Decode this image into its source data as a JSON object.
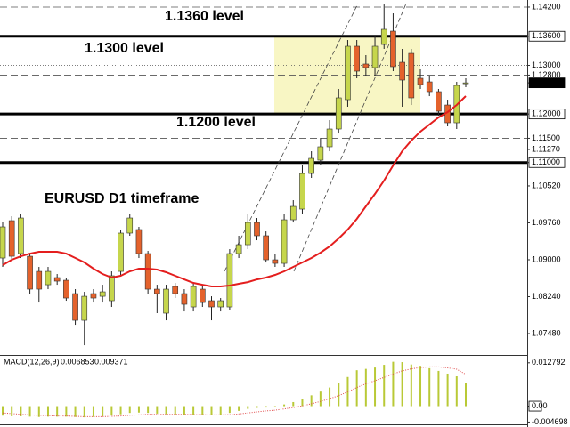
{
  "chart_data": [
    {
      "type": "candlestick",
      "annotations": [
        "1.1360 level",
        "1.1300 level",
        "1.1200 level",
        "EURUSD D1 timeframe"
      ],
      "open": [
        1.09036,
        1.09805,
        1.09127,
        1.09072,
        1.08761,
        1.08486,
        1.08633,
        1.08578,
        1.08303,
        1.07754,
        1.08303,
        1.08248,
        1.08157,
        1.08761,
        1.09549,
        1.09622,
        1.09127,
        1.08395,
        1.07901,
        1.0845,
        1.08303,
        1.08029,
        1.08395,
        1.08157,
        1.08029,
        1.08029,
        1.09127,
        1.0931,
        1.09768,
        1.09494,
        1.08999,
        1.08926,
        1.09823,
        1.10043,
        1.10775,
        1.1105,
        1.11325,
        1.11691,
        1.12295,
        1.13394,
        1.13028,
        1.12954,
        1.1343,
        1.13705,
        1.13064,
        1.13247,
        1.12735,
        1.12661,
        1.1246,
        1.12185,
        1.11819,
        1.12625
      ],
      "high": [
        1.09768,
        1.09896,
        1.09951,
        1.09127,
        1.08853,
        1.08853,
        1.08706,
        1.08633,
        1.08395,
        1.0834,
        1.08395,
        1.08486,
        1.08761,
        1.09622,
        1.09951,
        1.09677,
        1.09182,
        1.08486,
        1.08486,
        1.08523,
        1.08395,
        1.08523,
        1.08486,
        1.08248,
        1.08212,
        1.09219,
        1.09494,
        1.09951,
        1.0986,
        1.09585,
        1.09127,
        1.09951,
        1.10226,
        1.10958,
        1.11233,
        1.11508,
        1.11874,
        1.12515,
        1.13522,
        1.13522,
        1.13211,
        1.13614,
        1.14254,
        1.14071,
        1.13339,
        1.13339,
        1.12918,
        1.1279,
        1.12515,
        1.12295,
        1.12661,
        1.12735
      ],
      "low": [
        1.08853,
        1.08999,
        1.09036,
        1.08303,
        1.0812,
        1.08395,
        1.08486,
        1.08157,
        1.07662,
        1.07241,
        1.0812,
        1.0812,
        1.08029,
        1.0867,
        1.09494,
        1.09036,
        1.08303,
        1.07901,
        1.07754,
        1.08212,
        1.07937,
        1.07937,
        1.08029,
        1.07754,
        1.07937,
        1.07974,
        1.09036,
        1.09219,
        1.09402,
        1.08944,
        1.08853,
        1.08853,
        1.09768,
        1.09951,
        1.10684,
        1.10958,
        1.11233,
        1.11599,
        1.12149,
        1.12735,
        1.1279,
        1.1279,
        1.13339,
        1.12881,
        1.12149,
        1.12185,
        1.12515,
        1.12368,
        1.11966,
        1.11746,
        1.11691,
        1.12552
      ],
      "close": [
        1.09677,
        1.09072,
        1.0986,
        1.08395,
        1.08395,
        1.08761,
        1.0856,
        1.08212,
        1.07754,
        1.08248,
        1.08212,
        1.0834,
        1.0867,
        1.09549,
        1.0986,
        1.09127,
        1.08395,
        1.08303,
        1.08395,
        1.08303,
        1.08084,
        1.0845,
        1.0812,
        1.08029,
        1.08157,
        1.09127,
        1.0931,
        1.09768,
        1.09494,
        1.08999,
        1.08926,
        1.09823,
        1.10098,
        1.10775,
        1.11087,
        1.11325,
        1.11691,
        1.12332,
        1.13394,
        1.12881,
        1.12954,
        1.13394,
        1.13742,
        1.12973,
        1.12698,
        1.12332,
        1.12606,
        1.1246,
        1.12057,
        1.11819,
        1.12588,
        1.12641
      ],
      "colors": {
        "up": "#c6d64c",
        "down": "#e4622c"
      },
      "ma": {
        "color": "#e41e1e",
        "values": [
          1.08889,
          1.08999,
          1.09072,
          1.09127,
          1.09164,
          1.09164,
          1.09164,
          1.09127,
          1.09036,
          1.08944,
          1.08816,
          1.08706,
          1.08633,
          1.0867,
          1.08761,
          1.08816,
          1.08816,
          1.08798,
          1.08743,
          1.0867,
          1.08596,
          1.08523,
          1.08486,
          1.0845,
          1.0845,
          1.08468,
          1.08505,
          1.08541,
          1.08596,
          1.08633,
          1.08688,
          1.08761,
          1.08853,
          1.08944,
          1.09036,
          1.09146,
          1.09274,
          1.09439,
          1.09622,
          1.09841,
          1.10098,
          1.10354,
          1.10629,
          1.1094,
          1.11233,
          1.11453,
          1.11636,
          1.11782,
          1.11929,
          1.12039,
          1.12185,
          1.12368
        ]
      },
      "levels": [
        {
          "value": 1.142,
          "style": "dashed"
        },
        {
          "value": 1.136,
          "style": "solid"
        },
        {
          "value": 1.13,
          "style": "dotted"
        },
        {
          "value": 1.128,
          "style": "dashed"
        },
        {
          "value": 1.12,
          "style": "solid"
        },
        {
          "value": 1.115,
          "style": "dashed"
        },
        {
          "value": 1.11,
          "style": "solid"
        }
      ],
      "zone": {
        "ylim": [
          1.12,
          1.136
        ],
        "color": "#f8f6c4"
      },
      "ylim": [
        1.07059,
        1.14346
      ],
      "yticks": [
        {
          "value": 1.142,
          "label": "1.14200"
        },
        {
          "value": 1.136,
          "label": "1.13600"
        },
        {
          "value": 1.13,
          "label": "1.13000"
        },
        {
          "value": 1.128,
          "label": "1.12800"
        },
        1.12641,
        {
          "value": 1.12,
          "label": "1.12000"
        },
        {
          "value": 1.115,
          "label": "1.11500"
        },
        {
          "value": 1.1127,
          "label": "1.11270"
        },
        {
          "value": 1.11,
          "label": "1.11000"
        },
        {
          "value": 1.1052,
          "label": "1.10520"
        },
        {
          "value": 1.0976,
          "label": "1.09760"
        },
        {
          "value": 1.09,
          "label": "1.09000"
        },
        {
          "value": 1.0824,
          "label": "1.08240"
        },
        {
          "value": 1.0748,
          "label": "1.07480"
        }
      ]
    },
    {
      "type": "bar",
      "title": "MACD(12,26,9)",
      "color": "#b9c936",
      "values": [
        -0.0028,
        -0.003,
        -0.003,
        -0.0031,
        -0.0032,
        -0.0031,
        -0.0031,
        -0.0031,
        -0.0032,
        -0.0033,
        -0.0032,
        -0.003,
        -0.0028,
        -0.0024,
        -0.002,
        -0.0019,
        -0.002,
        -0.0022,
        -0.0024,
        -0.0025,
        -0.0026,
        -0.0027,
        -0.0027,
        -0.0027,
        -0.0026,
        -0.002,
        -0.0014,
        -0.0008,
        -0.0005,
        -0.0004,
        -0.0002,
        0.0005,
        0.0012,
        0.0021,
        0.0032,
        0.0043,
        0.0055,
        0.0068,
        0.0086,
        0.0106,
        0.011,
        0.0114,
        0.0122,
        0.0131,
        0.013,
        0.0123,
        0.0119,
        0.0112,
        0.0104,
        0.0096,
        0.0088,
        0.006853
      ],
      "signal": {
        "color": "#e04a4a",
        "values": [
          -0.002,
          -0.0022,
          -0.0024,
          -0.0026,
          -0.0027,
          -0.0028,
          -0.0029,
          -0.0029,
          -0.003,
          -0.0031,
          -0.0031,
          -0.0031,
          -0.003,
          -0.0029,
          -0.0027,
          -0.0026,
          -0.0024,
          -0.0024,
          -0.0024,
          -0.0024,
          -0.0024,
          -0.0025,
          -0.0025,
          -0.0026,
          -0.0026,
          -0.0025,
          -0.0023,
          -0.002,
          -0.0017,
          -0.0014,
          -0.0012,
          -0.0008,
          -0.0004,
          0.0001,
          0.0007,
          0.0014,
          0.0022,
          0.0031,
          0.0042,
          0.0055,
          0.0066,
          0.0075,
          0.0085,
          0.0095,
          0.0104,
          0.011,
          0.0114,
          0.0116,
          0.0116,
          0.0113,
          0.0109,
          0.009371
        ]
      },
      "ylim": [
        -0.00537,
        0.01458
      ],
      "yticks": [
        0.012792,
        {
          "value": 0,
          "label": "0.00"
        },
        -0.004698
      ]
    }
  ]
}
